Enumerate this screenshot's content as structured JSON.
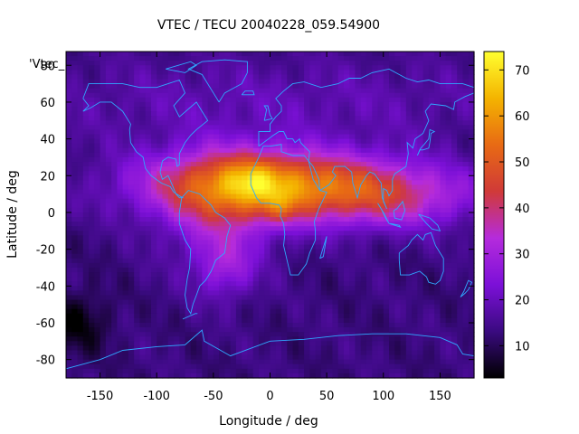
{
  "chart_data": {
    "type": "heatmap",
    "title": "VTEC / TECU 20040228_059.54900",
    "xlabel": "Longitude / deg",
    "ylabel": "Latitude / deg",
    "series_key": "'Vtec_",
    "xlim": [
      -180,
      180
    ],
    "ylim": [
      -90,
      87.5
    ],
    "x_ticks": [
      -150,
      -100,
      -50,
      0,
      50,
      100,
      150
    ],
    "y_ticks": [
      -80,
      -60,
      -40,
      -20,
      0,
      20,
      40,
      60,
      80
    ],
    "colorbar": {
      "min": 3,
      "max": 74,
      "ticks": [
        10,
        20,
        30,
        40,
        50,
        60,
        70
      ],
      "stops": [
        "#000000",
        "#3a0a80",
        "#7c10d8",
        "#b52bdc",
        "#d03a38",
        "#e86a14",
        "#f4b400",
        "#ffff30"
      ]
    },
    "grid_resolution_deg": [
      5,
      2.5
    ],
    "features": [
      {
        "lon": 0,
        "lat": 15,
        "sigma_lon": 75,
        "sigma_lat": 13,
        "amp": 44
      },
      {
        "lon": -45,
        "lat": 0,
        "sigma_lon": 35,
        "sigma_lat": 22,
        "amp": 14
      },
      {
        "lon": -15,
        "lat": 18,
        "sigma_lon": 15,
        "sigma_lat": 8,
        "amp": 8
      },
      {
        "lon": 10,
        "lat": 2,
        "sigma_lon": 12,
        "sigma_lat": 6,
        "amp": 8
      },
      {
        "lon": -40,
        "lat": -30,
        "sigma_lon": 18,
        "sigma_lat": 12,
        "amp": 12
      },
      {
        "lon": 110,
        "lat": 8,
        "sigma_lon": 55,
        "sigma_lat": 12,
        "amp": 18
      },
      {
        "lon": 0,
        "lat": 60,
        "sigma_lon": 180,
        "sigma_lat": 18,
        "amp": 6
      },
      {
        "lon": -170,
        "lat": -60,
        "sigma_lon": 20,
        "sigma_lat": 12,
        "amp": -9
      }
    ],
    "baseline": 13,
    "coastlines": [
      [
        [
          -165,
          62
        ],
        [
          -160,
          70
        ],
        [
          -145,
          70
        ],
        [
          -130,
          70
        ],
        [
          -115,
          68
        ],
        [
          -100,
          68
        ],
        [
          -90,
          70
        ],
        [
          -80,
          72
        ],
        [
          -75,
          65
        ],
        [
          -85,
          58
        ],
        [
          -80,
          52
        ],
        [
          -65,
          60
        ],
        [
          -60,
          55
        ],
        [
          -55,
          50
        ],
        [
          -65,
          45
        ],
        [
          -70,
          42
        ],
        [
          -75,
          38
        ],
        [
          -80,
          32
        ],
        [
          -80,
          26
        ],
        [
          -82,
          25
        ],
        [
          -83,
          29
        ],
        [
          -90,
          30
        ],
        [
          -95,
          28
        ],
        [
          -97,
          22
        ],
        [
          -95,
          18
        ],
        [
          -90,
          20
        ],
        [
          -87,
          16
        ],
        [
          -83,
          10
        ],
        [
          -80,
          8
        ],
        [
          -77,
          8
        ],
        [
          -85,
          11
        ],
        [
          -88,
          14
        ],
        [
          -92,
          15
        ],
        [
          -96,
          16
        ],
        [
          -105,
          20
        ],
        [
          -110,
          24
        ],
        [
          -112,
          30
        ],
        [
          -118,
          33
        ],
        [
          -123,
          38
        ],
        [
          -124,
          45
        ],
        [
          -123,
          48
        ],
        [
          -130,
          55
        ],
        [
          -140,
          60
        ],
        [
          -150,
          60
        ],
        [
          -158,
          57
        ],
        [
          -165,
          55
        ],
        [
          -160,
          58
        ],
        [
          -165,
          62
        ]
      ],
      [
        [
          -78,
          8
        ],
        [
          -72,
          12
        ],
        [
          -62,
          10
        ],
        [
          -52,
          4
        ],
        [
          -48,
          0
        ],
        [
          -40,
          -3
        ],
        [
          -35,
          -7
        ],
        [
          -38,
          -13
        ],
        [
          -40,
          -22
        ],
        [
          -48,
          -26
        ],
        [
          -52,
          -32
        ],
        [
          -57,
          -37
        ],
        [
          -62,
          -40
        ],
        [
          -65,
          -45
        ],
        [
          -68,
          -50
        ],
        [
          -70,
          -55
        ],
        [
          -73,
          -52
        ],
        [
          -75,
          -45
        ],
        [
          -73,
          -36
        ],
        [
          -71,
          -30
        ],
        [
          -70,
          -20
        ],
        [
          -75,
          -15
        ],
        [
          -80,
          -6
        ],
        [
          -80,
          0
        ],
        [
          -78,
          8
        ]
      ],
      [
        [
          -45,
          60
        ],
        [
          -40,
          65
        ],
        [
          -25,
          70
        ],
        [
          -20,
          76
        ],
        [
          -20,
          82
        ],
        [
          -40,
          83
        ],
        [
          -60,
          82
        ],
        [
          -72,
          78
        ],
        [
          -60,
          75
        ],
        [
          -55,
          70
        ],
        [
          -50,
          65
        ],
        [
          -45,
          60
        ]
      ],
      [
        [
          -17,
          21
        ],
        [
          -17,
          15
        ],
        [
          -12,
          8
        ],
        [
          -8,
          5
        ],
        [
          0,
          5
        ],
        [
          8,
          4
        ],
        [
          10,
          2
        ],
        [
          9,
          -2
        ],
        [
          12,
          -6
        ],
        [
          13,
          -12
        ],
        [
          12,
          -18
        ],
        [
          15,
          -26
        ],
        [
          18,
          -34
        ],
        [
          25,
          -34
        ],
        [
          32,
          -28
        ],
        [
          35,
          -22
        ],
        [
          40,
          -15
        ],
        [
          40,
          -10
        ],
        [
          39,
          -5
        ],
        [
          43,
          2
        ],
        [
          50,
          11
        ],
        [
          44,
          12
        ],
        [
          38,
          18
        ],
        [
          34,
          28
        ],
        [
          30,
          31
        ],
        [
          20,
          31
        ],
        [
          10,
          33
        ],
        [
          10,
          37
        ],
        [
          0,
          36
        ],
        [
          -6,
          36
        ],
        [
          -10,
          30
        ],
        [
          -17,
          21
        ]
      ],
      [
        [
          -10,
          36
        ],
        [
          -10,
          44
        ],
        [
          0,
          44
        ],
        [
          0,
          48
        ],
        [
          5,
          52
        ],
        [
          10,
          55
        ],
        [
          10,
          58
        ],
        [
          5,
          62
        ],
        [
          12,
          66
        ],
        [
          20,
          70
        ],
        [
          30,
          71
        ],
        [
          45,
          68
        ],
        [
          60,
          70
        ],
        [
          70,
          73
        ],
        [
          80,
          73
        ],
        [
          90,
          76
        ],
        [
          105,
          78
        ],
        [
          120,
          73
        ],
        [
          130,
          71
        ],
        [
          140,
          72
        ],
        [
          150,
          70
        ],
        [
          160,
          70
        ],
        [
          170,
          70
        ],
        [
          180,
          68
        ],
        [
          180,
          65
        ],
        [
          172,
          63
        ],
        [
          163,
          60
        ],
        [
          162,
          56
        ],
        [
          155,
          58
        ],
        [
          142,
          59
        ],
        [
          137,
          55
        ],
        [
          140,
          50
        ],
        [
          135,
          43
        ],
        [
          128,
          40
        ],
        [
          126,
          35
        ],
        [
          121,
          38
        ],
        [
          122,
          32
        ],
        [
          120,
          25
        ],
        [
          110,
          21
        ],
        [
          108,
          18
        ],
        [
          108,
          12
        ],
        [
          105,
          9
        ],
        [
          103,
          12
        ],
        [
          100,
          13
        ],
        [
          100,
          6
        ],
        [
          103,
          2
        ],
        [
          99,
          8
        ],
        [
          98,
          16
        ],
        [
          92,
          21
        ],
        [
          88,
          22
        ],
        [
          85,
          20
        ],
        [
          80,
          15
        ],
        [
          77,
          8
        ],
        [
          73,
          16
        ],
        [
          72,
          22
        ],
        [
          66,
          25
        ],
        [
          57,
          25
        ],
        [
          55,
          22
        ],
        [
          58,
          20
        ],
        [
          52,
          15
        ],
        [
          44,
          12
        ],
        [
          43,
          18
        ],
        [
          38,
          25
        ],
        [
          34,
          28
        ],
        [
          35,
          33
        ],
        [
          30,
          36
        ],
        [
          27,
          38
        ],
        [
          26,
          40
        ],
        [
          22,
          38
        ],
        [
          20,
          40
        ],
        [
          15,
          40
        ],
        [
          12,
          44
        ],
        [
          8,
          44
        ],
        [
          3,
          42
        ],
        [
          -10,
          36
        ]
      ],
      [
        [
          114,
          -22
        ],
        [
          114,
          -26
        ],
        [
          115,
          -34
        ],
        [
          123,
          -34
        ],
        [
          132,
          -32
        ],
        [
          138,
          -35
        ],
        [
          140,
          -38
        ],
        [
          146,
          -39
        ],
        [
          150,
          -37
        ],
        [
          153,
          -32
        ],
        [
          153,
          -25
        ],
        [
          146,
          -18
        ],
        [
          142,
          -11
        ],
        [
          137,
          -12
        ],
        [
          135,
          -15
        ],
        [
          130,
          -12
        ],
        [
          125,
          -15
        ],
        [
          122,
          -18
        ],
        [
          114,
          -22
        ]
      ],
      [
        [
          -180,
          -85
        ],
        [
          -150,
          -80
        ],
        [
          -130,
          -75
        ],
        [
          -100,
          -73
        ],
        [
          -75,
          -72
        ],
        [
          -60,
          -64
        ],
        [
          -58,
          -70
        ],
        [
          -35,
          -78
        ],
        [
          0,
          -70
        ],
        [
          30,
          -69
        ],
        [
          60,
          -67
        ],
        [
          90,
          -66
        ],
        [
          120,
          -66
        ],
        [
          150,
          -68
        ],
        [
          165,
          -72
        ],
        [
          170,
          -77
        ],
        [
          180,
          -78
        ]
      ],
      [
        [
          130,
          31
        ],
        [
          132,
          34
        ],
        [
          135,
          34
        ],
        [
          140,
          35
        ],
        [
          141,
          38
        ],
        [
          142,
          43
        ],
        [
          145,
          44
        ],
        [
          141,
          45
        ],
        [
          140,
          40
        ],
        [
          136,
          37
        ],
        [
          133,
          35
        ],
        [
          130,
          31
        ]
      ],
      [
        [
          -5,
          50
        ],
        [
          -3,
          56
        ],
        [
          -5,
          58
        ],
        [
          -2,
          58
        ],
        [
          0,
          53
        ],
        [
          2,
          51
        ],
        [
          -5,
          50
        ]
      ],
      [
        [
          95,
          5
        ],
        [
          100,
          0
        ],
        [
          105,
          -6
        ],
        [
          102,
          -3
        ],
        [
          98,
          2
        ],
        [
          95,
          5
        ]
      ],
      [
        [
          105,
          -6
        ],
        [
          115,
          -8
        ],
        [
          114,
          -7
        ],
        [
          106,
          -6
        ]
      ],
      [
        [
          109,
          1
        ],
        [
          110,
          -3
        ],
        [
          116,
          -4
        ],
        [
          119,
          1
        ],
        [
          117,
          6
        ],
        [
          112,
          2
        ],
        [
          109,
          1
        ]
      ],
      [
        [
          131,
          -1
        ],
        [
          141,
          -3
        ],
        [
          148,
          -7
        ],
        [
          150,
          -10
        ],
        [
          143,
          -9
        ],
        [
          138,
          -6
        ],
        [
          131,
          -1
        ]
      ],
      [
        [
          173,
          -40
        ],
        [
          175,
          -37
        ],
        [
          178,
          -38
        ],
        [
          175,
          -42
        ],
        [
          172,
          -44
        ],
        [
          168,
          -46
        ],
        [
          171,
          -43
        ],
        [
          173,
          -40
        ]
      ],
      [
        [
          44,
          -25
        ],
        [
          49,
          -15
        ],
        [
          50,
          -13
        ],
        [
          47,
          -24
        ],
        [
          44,
          -25
        ]
      ],
      [
        [
          -77,
          -58
        ],
        [
          -66,
          -55
        ],
        [
          -64,
          -55
        ]
      ],
      [
        [
          -92,
          78
        ],
        [
          -70,
          82
        ],
        [
          -65,
          80
        ],
        [
          -75,
          76
        ],
        [
          -92,
          78
        ]
      ],
      [
        [
          -25,
          64
        ],
        [
          -14,
          64
        ],
        [
          -15,
          66
        ],
        [
          -22,
          66
        ],
        [
          -25,
          64
        ]
      ]
    ]
  }
}
